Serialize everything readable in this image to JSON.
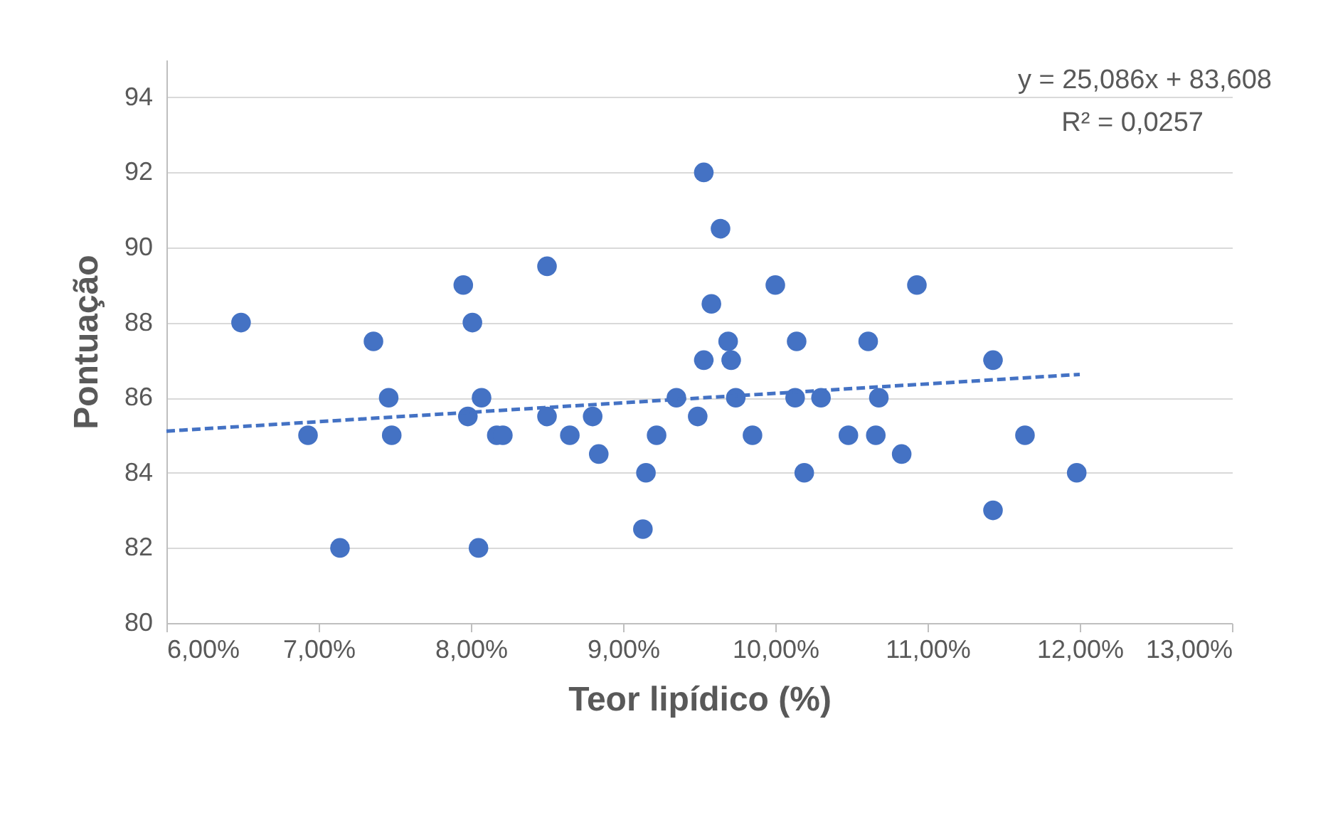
{
  "chart_data": {
    "type": "scatter",
    "xlabel": "Teor lipídico (%)",
    "ylabel": "Pontuação",
    "x": [
      6.49,
      6.93,
      7.14,
      7.36,
      7.46,
      7.48,
      7.95,
      7.98,
      8.01,
      8.07,
      8.05,
      8.17,
      8.21,
      8.5,
      8.5,
      8.65,
      8.8,
      8.84,
      9.13,
      9.15,
      9.22,
      9.35,
      9.49,
      9.53,
      9.53,
      9.58,
      9.64,
      9.69,
      9.71,
      9.74,
      9.85,
      10.0,
      10.13,
      10.14,
      10.19,
      10.3,
      10.48,
      10.61,
      10.66,
      10.68,
      10.83,
      10.93,
      11.43,
      11.43,
      11.64,
      11.98
    ],
    "series": [
      {
        "color": "#4472c4",
        "marker": "circle",
        "values": [
          88,
          85,
          82,
          87.5,
          86,
          85,
          89,
          85.5,
          88,
          86,
          82,
          85,
          85,
          89.5,
          85.5,
          85,
          85.5,
          84.5,
          82.5,
          84,
          85,
          86,
          85.5,
          92,
          87,
          88.5,
          90.5,
          87.5,
          87,
          86,
          85,
          89,
          86,
          87.5,
          84,
          86,
          85,
          87.5,
          85,
          86,
          84.5,
          89,
          87,
          83,
          85,
          84
        ]
      },
      {
        "type": "line",
        "color": "#4472c4",
        "line_style": "dashed",
        "x": [
          6,
          12
        ],
        "values": [
          85.11,
          86.62
        ]
      }
    ],
    "xlim": [
      6,
      13
    ],
    "xticks": [
      {
        "value": 6,
        "label": "6,00%"
      },
      {
        "value": 7,
        "label": "7,00%"
      },
      {
        "value": 8,
        "label": "8,00%"
      },
      {
        "value": 9,
        "label": "9,00%"
      },
      {
        "value": 10,
        "label": "10,00%"
      },
      {
        "value": 11,
        "label": "11,00%"
      },
      {
        "value": 12,
        "label": "12,00%"
      },
      {
        "value": 13,
        "label": "13,00%"
      }
    ],
    "ylim": [
      80,
      95
    ],
    "yticks": [
      80,
      82,
      84,
      86,
      88,
      90,
      92,
      94
    ],
    "grid": "y",
    "annotations": [
      "y = 25,086x + 83,608",
      "R² = 0,0257"
    ]
  }
}
